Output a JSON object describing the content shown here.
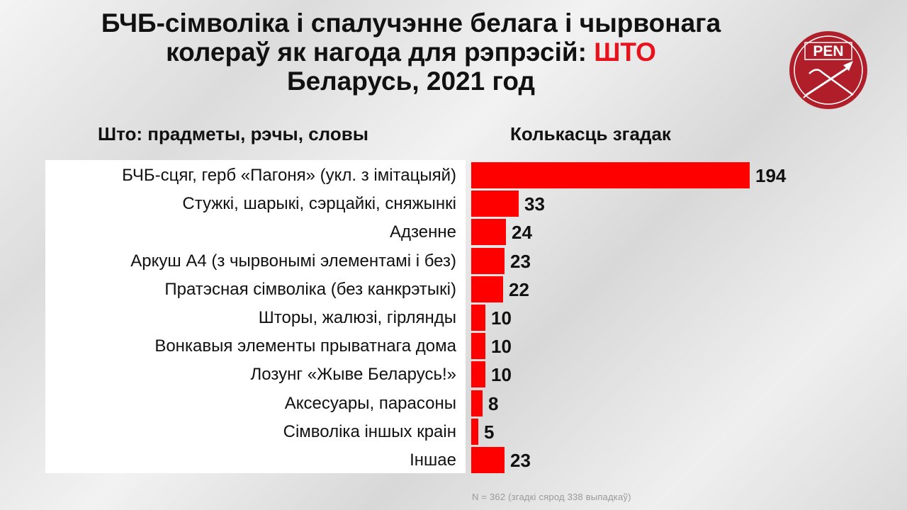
{
  "header": {
    "title_line1": "БЧБ-сімволіка і спалучэнне белага і чырвонага",
    "title_line2_prefix": "колераў як нагода для рэпрэсій: ",
    "title_line2_accent": "ШТО",
    "title_line3": "Беларусь, 2021 год",
    "accent_color": "#e8121c"
  },
  "logo": {
    "text": "PEN",
    "color": "#b01e2a"
  },
  "chart_data": {
    "type": "bar",
    "orientation": "horizontal",
    "category_header": "Што: прадметы, рэчы, словы",
    "value_header": "Колькасць згадак",
    "categories": [
      "БЧБ-сцяг, герб «Пагоня» (укл. з імітацыяй)",
      "Стужкі, шарыкі, сэрцайкі, сняжынкі",
      "Адзенне",
      "Аркуш А4 (з чырвонымі элементамі і без)",
      "Пратэсная сімволіка (без канкрэтыкі)",
      "Шторы, жалюзі, гірлянды",
      "Вонкавыя элементы прыватнага дома",
      "Лозунг «Жыве Беларусь!»",
      "Аксесуары, парасоны",
      "Сімволіка іншых краін",
      "Іншае"
    ],
    "values": [
      194,
      33,
      24,
      23,
      22,
      10,
      10,
      10,
      8,
      5,
      23
    ],
    "bar_color": "#fe0000",
    "xlim": [
      0,
      194
    ],
    "grid": false,
    "legend": "none",
    "note": "N = 362 (згадкі сярод 338 выпадкаў)"
  }
}
